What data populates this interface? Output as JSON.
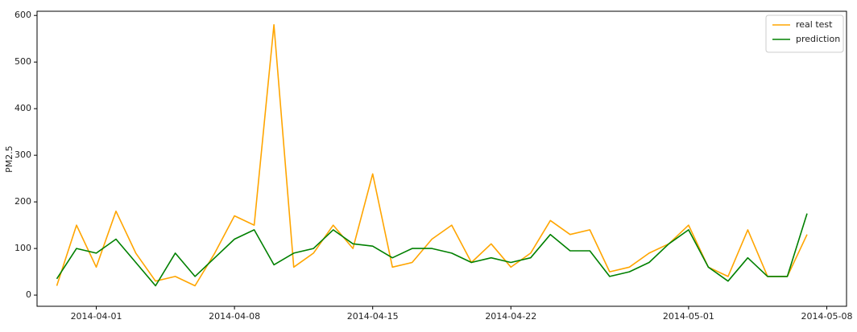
{
  "chart_data": {
    "type": "line",
    "y_label": "PM2.5",
    "x": [
      "2014-03-30",
      "2014-03-31",
      "2014-04-01",
      "2014-04-02",
      "2014-04-03",
      "2014-04-04",
      "2014-04-05",
      "2014-04-06",
      "2014-04-07",
      "2014-04-08",
      "2014-04-09",
      "2014-04-10",
      "2014-04-11",
      "2014-04-12",
      "2014-04-13",
      "2014-04-14",
      "2014-04-15",
      "2014-04-16",
      "2014-04-17",
      "2014-04-18",
      "2014-04-19",
      "2014-04-20",
      "2014-04-21",
      "2014-04-22",
      "2014-04-23",
      "2014-04-24",
      "2014-04-25",
      "2014-04-26",
      "2014-04-27",
      "2014-04-28",
      "2014-04-29",
      "2014-04-30",
      "2014-05-01",
      "2014-05-02",
      "2014-05-03",
      "2014-05-04",
      "2014-05-05",
      "2014-05-06",
      "2014-05-07"
    ],
    "series": [
      {
        "name": "real test",
        "color": "#ffa500",
        "values": [
          20,
          150,
          60,
          180,
          90,
          30,
          40,
          20,
          90,
          170,
          150,
          580,
          60,
          90,
          150,
          100,
          260,
          60,
          70,
          120,
          150,
          70,
          110,
          60,
          90,
          160,
          130,
          140,
          50,
          60,
          90,
          110,
          150,
          60,
          40,
          140,
          40,
          40,
          130
        ]
      },
      {
        "name": "prediction",
        "color": "#008000",
        "values": [
          35,
          100,
          90,
          120,
          70,
          20,
          90,
          40,
          80,
          120,
          140,
          65,
          90,
          100,
          140,
          110,
          105,
          80,
          100,
          100,
          90,
          70,
          80,
          70,
          80,
          130,
          95,
          95,
          40,
          50,
          70,
          110,
          140,
          60,
          30,
          80,
          40,
          40,
          175
        ]
      }
    ],
    "xlim": [
      "2014-03-29",
      "2014-05-09"
    ],
    "xticks": [
      "2014-04-01",
      "2014-04-08",
      "2014-04-15",
      "2014-04-22",
      "2014-05-01",
      "2014-05-08"
    ],
    "ylim": [
      -24,
      609
    ],
    "yticks": [
      0,
      100,
      200,
      300,
      400,
      500,
      600
    ],
    "legend": "upper right",
    "grid": false
  }
}
